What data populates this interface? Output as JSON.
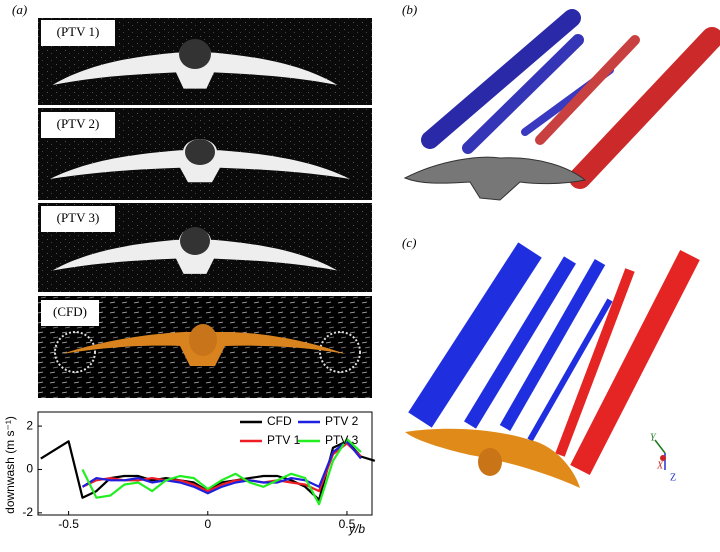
{
  "panels": {
    "a": {
      "label": "(a)",
      "images": [
        "(PTV 1)",
        "(PTV 2)",
        "(PTV 3)",
        "(CFD)"
      ]
    },
    "b": {
      "label": "(b)"
    },
    "c": {
      "label": "(c)",
      "axes": [
        "Y",
        "X",
        "Z"
      ]
    }
  },
  "chart_data": {
    "type": "line",
    "x_label": "y/b",
    "y_label": "downwash (m s⁻¹)",
    "x": [
      -0.6,
      -0.55,
      -0.5,
      -0.45,
      -0.4,
      -0.35,
      -0.3,
      -0.25,
      -0.2,
      -0.15,
      -0.1,
      -0.05,
      0,
      0.05,
      0.1,
      0.15,
      0.2,
      0.25,
      0.3,
      0.35,
      0.4,
      0.45,
      0.5,
      0.55,
      0.6
    ],
    "series": [
      {
        "name": "CFD",
        "color": "#000000",
        "values": [
          0.5,
          0.9,
          1.3,
          -1.3,
          -1.0,
          -0.4,
          -0.3,
          -0.3,
          -0.5,
          -0.4,
          -0.5,
          -0.6,
          -1.0,
          -0.6,
          -0.5,
          -0.4,
          -0.3,
          -0.3,
          -0.5,
          -0.8,
          -1.4,
          1.0,
          1.3,
          0.6,
          0.4
        ]
      },
      {
        "name": "PTV 1",
        "color": "#ee1c25",
        "values": [
          null,
          null,
          null,
          -0.8,
          -0.5,
          -0.4,
          -0.5,
          -0.5,
          -0.4,
          -0.5,
          -0.5,
          -0.7,
          -1.0,
          -0.7,
          -0.5,
          -0.5,
          -0.6,
          -0.5,
          -0.6,
          -0.7,
          -1.0,
          0.7,
          1.2,
          0.6,
          null
        ]
      },
      {
        "name": "PTV 2",
        "color": "#1f1fe0",
        "values": [
          null,
          null,
          null,
          -0.8,
          -0.4,
          -0.5,
          -0.5,
          -0.4,
          -0.6,
          -0.5,
          -0.6,
          -0.8,
          -1.1,
          -0.8,
          -0.6,
          -0.5,
          -0.6,
          -0.6,
          -0.4,
          -0.5,
          -0.8,
          0.8,
          1.3,
          0.5,
          null
        ]
      },
      {
        "name": "PTV 3",
        "color": "#22ee22",
        "values": [
          null,
          null,
          null,
          0,
          -1.3,
          -1.2,
          -0.7,
          -0.6,
          -1.0,
          -0.5,
          -0.3,
          -0.4,
          -0.9,
          -0.5,
          -0.2,
          -0.6,
          -0.8,
          -0.5,
          -0.2,
          -0.4,
          -1.6,
          0.4,
          1.4,
          0.8,
          null
        ]
      }
    ],
    "xlim": [
      -0.61,
      0.59
    ],
    "xticks": [
      -0.5,
      0,
      0.5
    ],
    "ylim": [
      -2.1,
      2.65
    ],
    "yticks": [
      -2,
      0,
      2
    ]
  }
}
